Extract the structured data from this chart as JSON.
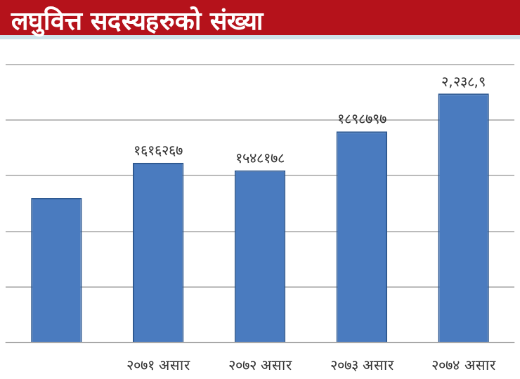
{
  "chart_data": {
    "type": "bar",
    "title": "लघुवित्त सदस्यहरुको संख्या",
    "categories": [
      null,
      "२०७१ असार",
      "२०७२ असार",
      "२०७३ असार",
      "२०७४ असार"
    ],
    "values": [
      1300000,
      1616267,
      1548178,
      1898797,
      2238900
    ],
    "value_labels": [
      null,
      "१६१६२६७",
      "१५४८१७८",
      "१८९८७९७",
      "२,२३८,९"
    ],
    "color": "#4a7bbf",
    "ylim": [
      0,
      2500000
    ],
    "yticks": [
      {
        "value": 0,
        "label": null
      },
      {
        "value": 500000,
        "label": null
      },
      {
        "value": 1000000,
        "label": null
      },
      {
        "value": 1500000,
        "label": null
      },
      {
        "value": 2000000,
        "label": null
      },
      {
        "value": 2500000,
        "label": null
      }
    ],
    "grid": "y",
    "legend": false
  }
}
